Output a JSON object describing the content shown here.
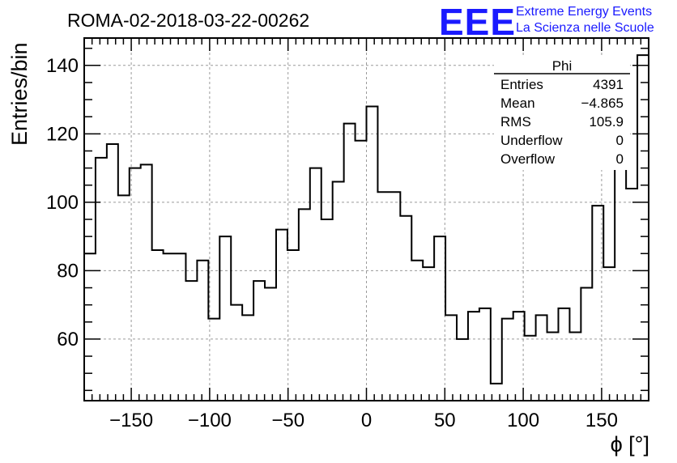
{
  "chart_data": {
    "type": "histogram",
    "title": "ROMA-02-2018-03-22-00262",
    "xlabel": "ϕ [°]",
    "ylabel": "Entries/bin",
    "xlim": [
      -180,
      180
    ],
    "ylim": [
      42,
      148
    ],
    "bin_width": 7.2,
    "x_ticks": [
      -150,
      -100,
      -50,
      0,
      50,
      100,
      150
    ],
    "x_tick_labels": [
      "−150",
      "−100",
      "−50",
      "0",
      "50",
      "100",
      "150"
    ],
    "y_ticks": [
      60,
      80,
      100,
      120,
      140
    ],
    "y_tick_labels": [
      "60",
      "80",
      "100",
      "120",
      "140"
    ],
    "grid": true,
    "values": [
      85,
      113,
      117,
      102,
      110,
      111,
      86,
      85,
      85,
      77,
      83,
      66,
      90,
      70,
      67,
      77,
      75,
      92,
      86,
      98,
      110,
      95,
      106,
      123,
      118,
      128,
      103,
      103,
      96,
      83,
      81,
      90,
      67,
      60,
      68,
      69,
      47,
      66,
      68,
      61,
      67,
      62,
      69,
      62,
      75,
      99,
      81,
      113,
      104,
      143
    ],
    "stats": {
      "title": "Phi",
      "rows": [
        {
          "label": "Entries",
          "value": "4391"
        },
        {
          "label": "Mean",
          "value": "−4.865"
        },
        {
          "label": "RMS",
          "value": "105.9"
        },
        {
          "label": "Underflow",
          "value": "0"
        },
        {
          "label": "Overflow",
          "value": "0"
        }
      ]
    }
  },
  "logo": {
    "mark": "EEE",
    "line1": "Extreme Energy Events",
    "line2": "La Scienza nelle Scuole"
  }
}
